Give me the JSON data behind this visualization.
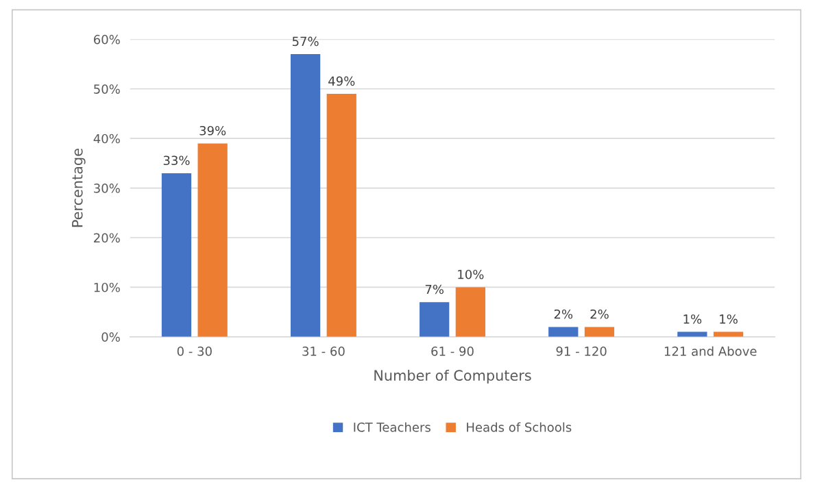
{
  "chart_data": {
    "type": "bar",
    "xlabel": "Number of Computers",
    "ylabel": "Percentage",
    "categories": [
      "0 - 30",
      "31 - 60",
      "61 - 90",
      "91 - 120",
      "121 and Above"
    ],
    "series": [
      {
        "name": "ICT Teachers",
        "color": "#4472c4",
        "values": [
          33,
          57,
          7,
          2,
          1
        ],
        "value_labels": [
          "33%",
          "57%",
          "7%",
          "2%",
          "1%"
        ]
      },
      {
        "name": "Heads of Schools",
        "color": "#ed7d31",
        "values": [
          39,
          49,
          10,
          2,
          1
        ],
        "value_labels": [
          "39%",
          "49%",
          "10%",
          "2%",
          "1%"
        ]
      }
    ],
    "ylim": [
      0,
      60
    ],
    "yticks": [
      {
        "value": 0,
        "label": "0%"
      },
      {
        "value": 10,
        "label": "10%"
      },
      {
        "value": 20,
        "label": "20%"
      },
      {
        "value": 30,
        "label": "30%"
      },
      {
        "value": 40,
        "label": "40%"
      },
      {
        "value": 50,
        "label": "50%"
      },
      {
        "value": 60,
        "label": "60%"
      }
    ],
    "grid": "y",
    "legend": "bottom"
  }
}
